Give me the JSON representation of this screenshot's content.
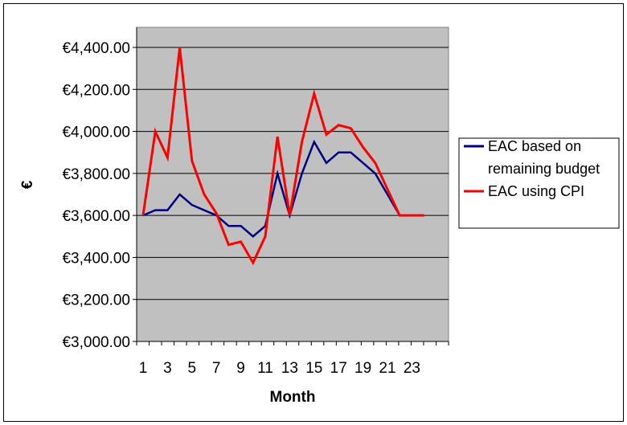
{
  "chart_data": {
    "type": "line",
    "title": "",
    "xlabel": "Month",
    "ylabel": "€",
    "ylim": [
      3000,
      4400
    ],
    "xlim": [
      1,
      24
    ],
    "y_ticks": [
      3000,
      3200,
      3400,
      3600,
      3800,
      4000,
      4200,
      4400
    ],
    "y_tick_labels": [
      "€3,000.00",
      "€3,200.00",
      "€3,400.00",
      "€3,600.00",
      "€3,800.00",
      "€4,000.00",
      "€4,200.00",
      "€4,400.00"
    ],
    "x": [
      1,
      2,
      3,
      4,
      5,
      6,
      7,
      8,
      9,
      10,
      11,
      12,
      13,
      14,
      15,
      16,
      17,
      18,
      19,
      20,
      21,
      22,
      23,
      24
    ],
    "x_tick_labels": [
      "1",
      "3",
      "5",
      "7",
      "9",
      "11",
      "13",
      "15",
      "17",
      "19",
      "21",
      "23"
    ],
    "x_tick_values": [
      1,
      3,
      5,
      7,
      9,
      11,
      13,
      15,
      17,
      19,
      21,
      23
    ],
    "grid": true,
    "plot_background": "#c0c0c0",
    "legend": {
      "position": "right",
      "entries": [
        "EAC based on remaining budget",
        "EAC using CPI"
      ]
    },
    "series": [
      {
        "name": "EAC based on remaining budget",
        "color": "#000080",
        "values": [
          3600,
          3625,
          3625,
          3700,
          3650,
          3625,
          3600,
          3550,
          3550,
          3500,
          3550,
          3800,
          3600,
          3800,
          3950,
          3850,
          3900,
          3900,
          3850,
          3800,
          3700,
          3600,
          3600,
          3600
        ]
      },
      {
        "name": "EAC using CPI",
        "color": "#ff0000",
        "values": [
          3600,
          4000,
          3875,
          4400,
          3860,
          3700,
          3610,
          3460,
          3475,
          3375,
          3500,
          3975,
          3600,
          3950,
          4180,
          3985,
          4030,
          4015,
          3925,
          3850,
          3725,
          3600,
          3600,
          3600
        ]
      }
    ]
  },
  "legend_lines": [
    [
      "EAC based on",
      "remaining budget"
    ],
    [
      "EAC using CPI"
    ]
  ]
}
